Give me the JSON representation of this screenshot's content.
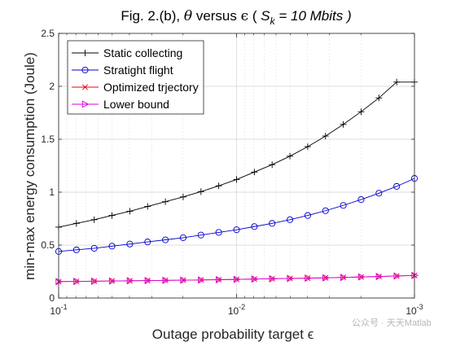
{
  "watermark": "公众号 · 天天Matlab",
  "chart_data": {
    "type": "line",
    "title": "Fig. 2.(b), θ versus ϵ (  S_k = 10 Mbits )",
    "title_parts": {
      "prefix": "Fig. 2.(b), ",
      "theta": "θ",
      "middle": " versus ",
      "epsilon": "ϵ",
      "open": " (  ",
      "sym": "S",
      "sub": "k",
      "rest": " = 10 Mbits )"
    },
    "xlabel": "Outage probability target ϵ",
    "ylabel": "min-max energy consumption (Joule)",
    "xscale": "log",
    "xreversed": true,
    "xlim": [
      0.1,
      0.001
    ],
    "ylim": [
      0,
      2.5
    ],
    "yticks": [
      0,
      0.5,
      1,
      1.5,
      2,
      2.5
    ],
    "ytick_labels": [
      "0",
      "0.5",
      "1",
      "1.5",
      "2",
      "2.5"
    ],
    "xticks": [
      {
        "value": 0.1,
        "base": "10",
        "exp": "-1"
      },
      {
        "value": 0.01,
        "base": "10",
        "exp": "-2"
      },
      {
        "value": 0.001,
        "base": "10",
        "exp": "-3"
      }
    ],
    "grid": true,
    "legend_position": "top-left",
    "x": [
      0.1,
      0.07943,
      0.0631,
      0.05012,
      0.03981,
      0.03162,
      0.02512,
      0.01995,
      0.01585,
      0.01259,
      0.01,
      0.007943,
      0.00631,
      0.005012,
      0.003981,
      0.003162,
      0.002512,
      0.001995,
      0.001585,
      0.001259,
      0.001
    ],
    "series": [
      {
        "name": "Static collecting",
        "color": "#000000",
        "marker": "plus",
        "values": [
          0.67,
          0.705,
          0.74,
          0.78,
          0.82,
          0.865,
          0.91,
          0.955,
          1.005,
          1.06,
          1.12,
          1.19,
          1.26,
          1.34,
          1.43,
          1.53,
          1.64,
          1.76,
          1.89,
          2.04,
          2.04
        ]
      },
      {
        "name": "Stratight flight",
        "color": "#0000cc",
        "marker": "circle",
        "values": [
          0.44,
          0.455,
          0.47,
          0.49,
          0.51,
          0.53,
          0.55,
          0.57,
          0.595,
          0.62,
          0.645,
          0.675,
          0.705,
          0.74,
          0.78,
          0.825,
          0.875,
          0.93,
          0.99,
          1.055,
          1.13
        ]
      },
      {
        "name": "Optimized trjectory",
        "color": "#e8000b",
        "marker": "x",
        "values": [
          0.155,
          0.157,
          0.159,
          0.161,
          0.163,
          0.165,
          0.167,
          0.169,
          0.171,
          0.173,
          0.176,
          0.179,
          0.182,
          0.185,
          0.188,
          0.191,
          0.195,
          0.199,
          0.203,
          0.208,
          0.213
        ]
      },
      {
        "name": "Lower bound",
        "color": "#dd00dd",
        "marker": "triangle-right",
        "values": [
          0.155,
          0.157,
          0.159,
          0.161,
          0.163,
          0.165,
          0.167,
          0.169,
          0.171,
          0.173,
          0.176,
          0.179,
          0.182,
          0.185,
          0.188,
          0.191,
          0.195,
          0.199,
          0.203,
          0.208,
          0.213
        ]
      }
    ]
  }
}
